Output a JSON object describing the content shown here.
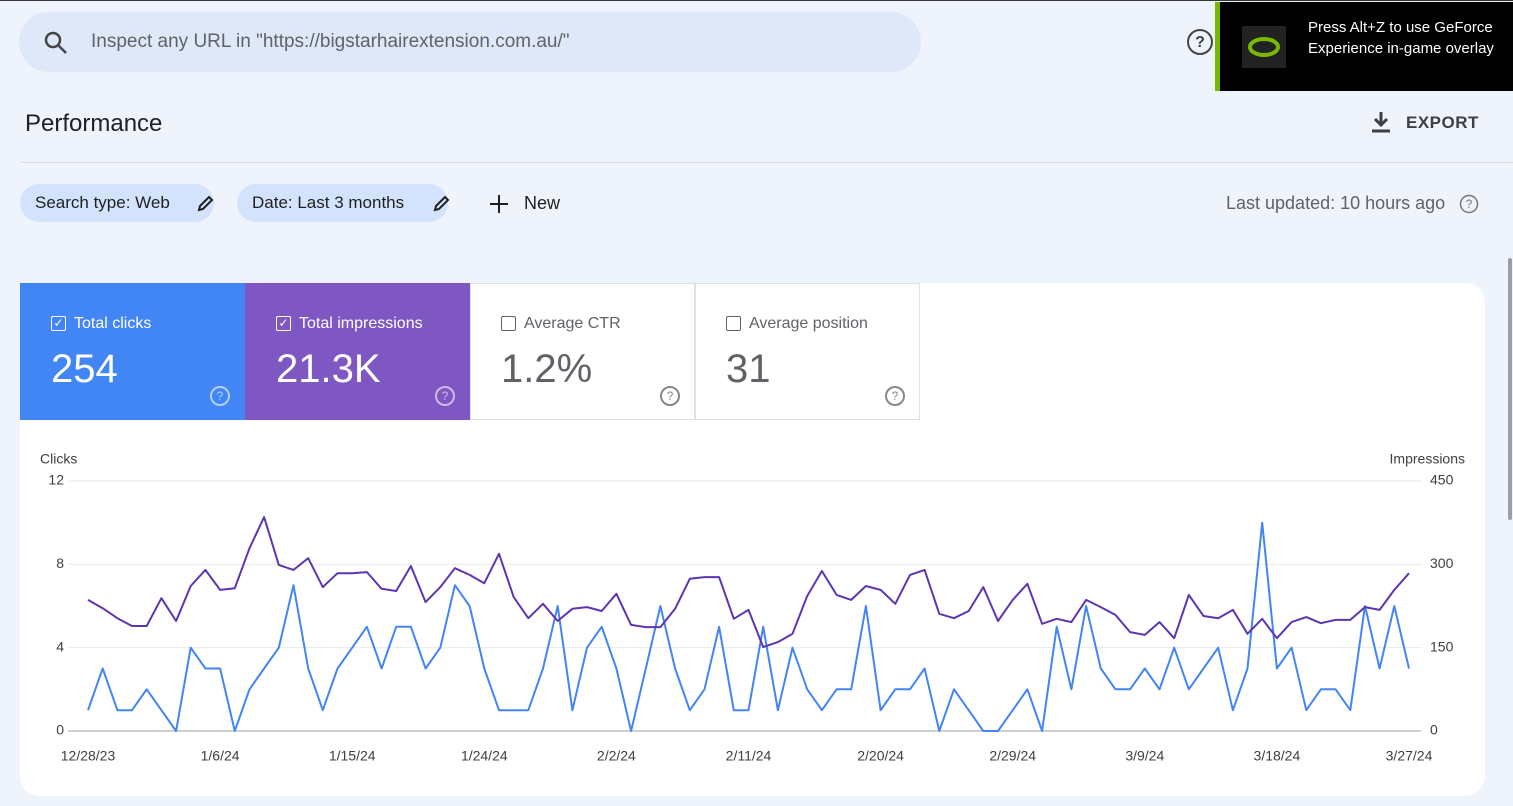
{
  "search": {
    "placeholder": "Inspect any URL in \"https://bigstarhairextension.com.au/\""
  },
  "overlay": {
    "text": "Press Alt+Z to use GeForce Experience in-game overlay"
  },
  "header": {
    "title": "Performance",
    "export": "EXPORT"
  },
  "filters": [
    "Search type: Web",
    "Date: Last 3 months",
    "New"
  ],
  "last_updated": "Last updated: 10 hours ago",
  "metrics": [
    {
      "label": "Total clicks",
      "value": "254",
      "checked": true,
      "color": "#4285f4"
    },
    {
      "label": "Total impressions",
      "value": "21.3K",
      "checked": true,
      "color": "#7e57c2"
    },
    {
      "label": "Average CTR",
      "value": "1.2%",
      "checked": false,
      "color": "#ffffff"
    },
    {
      "label": "Average position",
      "value": "31",
      "checked": false,
      "color": "#ffffff"
    }
  ],
  "chart_data": {
    "type": "line",
    "y_label": "Clicks",
    "y2_label": "Impressions",
    "categories": [
      "12/28/23",
      null,
      null,
      null,
      null,
      null,
      null,
      null,
      null,
      "1/6/24",
      null,
      null,
      null,
      null,
      null,
      null,
      null,
      null,
      "1/15/24",
      null,
      null,
      null,
      null,
      null,
      null,
      null,
      null,
      "1/24/24",
      null,
      null,
      null,
      null,
      null,
      null,
      null,
      null,
      "2/2/24",
      null,
      null,
      null,
      null,
      null,
      null,
      null,
      null,
      "2/11/24",
      null,
      null,
      null,
      null,
      null,
      null,
      null,
      null,
      "2/20/24",
      null,
      null,
      null,
      null,
      null,
      null,
      null,
      null,
      "2/29/24",
      null,
      null,
      null,
      null,
      null,
      null,
      null,
      null,
      "3/9/24",
      null,
      null,
      null,
      null,
      null,
      null,
      null,
      null,
      "3/18/24",
      null,
      null,
      null,
      null,
      null,
      null,
      null,
      null,
      "3/27/24"
    ],
    "series": [
      {
        "color": "#4285f4",
        "values": [
          1,
          3,
          1,
          1,
          2,
          1,
          0,
          4,
          3,
          3,
          0,
          2,
          3,
          4,
          7,
          3,
          1,
          3,
          4,
          5,
          3,
          5,
          5,
          3,
          4,
          7,
          6,
          3,
          1,
          1,
          1,
          3,
          6,
          1,
          4,
          5,
          3,
          0,
          3,
          6,
          3,
          1,
          2,
          5,
          1,
          1,
          5,
          1,
          4,
          2,
          1,
          2,
          2,
          6,
          1,
          2,
          2,
          3,
          0,
          2,
          1,
          0,
          0,
          1,
          2,
          0,
          5,
          2,
          6,
          3,
          2,
          2,
          3,
          2,
          4,
          2,
          3,
          4,
          1,
          3,
          10,
          3,
          4,
          1,
          2,
          2,
          1,
          6,
          3,
          6,
          3
        ]
      },
      {
        "color": "#5e35b1",
        "axis": "y2",
        "values": [
          236,
          221,
          203,
          189,
          189,
          239,
          198,
          261,
          290,
          254,
          257,
          329,
          385,
          299,
          290,
          311,
          259,
          284,
          284,
          286,
          256,
          252,
          297,
          232,
          259,
          293,
          281,
          266,
          319,
          241,
          203,
          229,
          198,
          220,
          223,
          216,
          247,
          191,
          187,
          187,
          220,
          274,
          277,
          277,
          202,
          218,
          151,
          160,
          175,
          243,
          288,
          245,
          236,
          261,
          254,
          229,
          281,
          290,
          211,
          203,
          216,
          259,
          198,
          236,
          265,
          193,
          202,
          196,
          236,
          223,
          209,
          178,
          173,
          196,
          167,
          245,
          207,
          203,
          218,
          175,
          202,
          167,
          196,
          205,
          194,
          200,
          200,
          223,
          218,
          254,
          284
        ]
      }
    ],
    "ylim": [
      0,
      12
    ],
    "yticks": [
      0,
      4,
      8,
      12
    ],
    "y2lim": [
      0,
      450
    ],
    "y2ticks": [
      0,
      150,
      300,
      450
    ],
    "grid": true
  }
}
